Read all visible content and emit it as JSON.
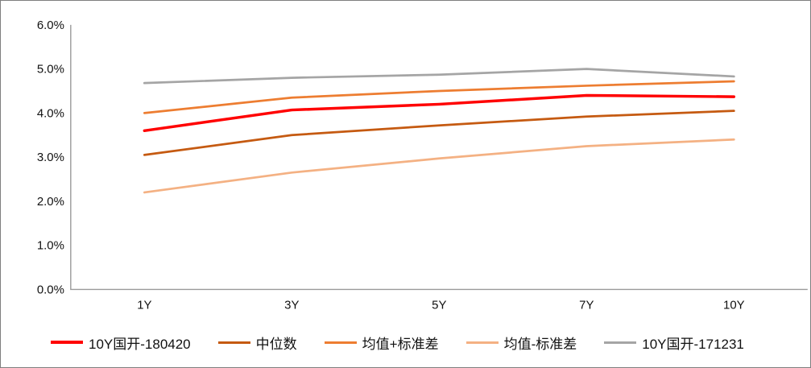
{
  "chart": {
    "background": "#ffffff",
    "border_color": "#7f7f7f",
    "axis_color": "#9a9a9a",
    "text_color": "#111111"
  },
  "chart_data": {
    "type": "line",
    "title": "",
    "xlabel": "",
    "ylabel": "",
    "units": "percent",
    "grid": false,
    "legend_position": "bottom",
    "categories": [
      "1Y",
      "3Y",
      "5Y",
      "7Y",
      "10Y"
    ],
    "ylim": [
      0,
      6
    ],
    "ytick_step": 1,
    "ytick_labels": [
      "0.0%",
      "1.0%",
      "2.0%",
      "3.0%",
      "4.0%",
      "5.0%",
      "6.0%"
    ],
    "series": [
      {
        "name": "10Y国开-180420",
        "color": "#FF0000",
        "line_width": 3.5,
        "values": [
          3.6,
          4.07,
          4.2,
          4.4,
          4.37
        ]
      },
      {
        "name": "中位数",
        "color": "#C55A11",
        "line_width": 2.75,
        "values": [
          3.05,
          3.5,
          3.72,
          3.92,
          4.05
        ]
      },
      {
        "name": "均值+标准差",
        "color": "#ED7D31",
        "line_width": 2.75,
        "values": [
          4.0,
          4.35,
          4.5,
          4.62,
          4.72
        ]
      },
      {
        "name": "均值-标准差",
        "color": "#F4B183",
        "line_width": 2.75,
        "values": [
          2.2,
          2.65,
          2.97,
          3.25,
          3.4
        ]
      },
      {
        "name": "10Y国开-171231",
        "color": "#A5A5A5",
        "line_width": 2.75,
        "values": [
          4.68,
          4.8,
          4.87,
          5.0,
          4.83
        ]
      }
    ]
  }
}
